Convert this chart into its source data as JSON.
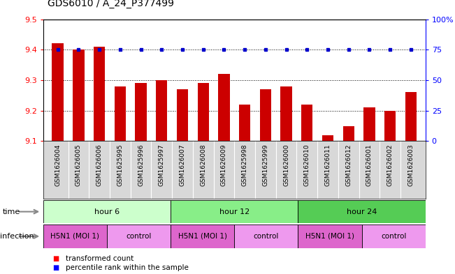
{
  "title": "GDS6010 / A_24_P377499",
  "samples": [
    "GSM1626004",
    "GSM1626005",
    "GSM1626006",
    "GSM1625995",
    "GSM1625996",
    "GSM1625997",
    "GSM1626007",
    "GSM1626008",
    "GSM1626009",
    "GSM1625998",
    "GSM1625999",
    "GSM1626000",
    "GSM1626010",
    "GSM1626011",
    "GSM1626012",
    "GSM1626001",
    "GSM1626002",
    "GSM1626003"
  ],
  "transformed_counts": [
    9.42,
    9.4,
    9.41,
    9.28,
    9.29,
    9.3,
    9.27,
    9.29,
    9.32,
    9.22,
    9.27,
    9.28,
    9.22,
    9.12,
    9.15,
    9.21,
    9.2,
    9.26
  ],
  "percentile_ranks": [
    75,
    75,
    75,
    75,
    75,
    75,
    75,
    75,
    75,
    75,
    75,
    75,
    75,
    75,
    75,
    75,
    75,
    75
  ],
  "ylim_left": [
    9.1,
    9.5
  ],
  "ylim_right": [
    0,
    100
  ],
  "bar_color": "#cc0000",
  "dot_color": "#0000cc",
  "yticks_left": [
    9.1,
    9.2,
    9.3,
    9.4,
    9.5
  ],
  "yticks_right": [
    0,
    25,
    50,
    75,
    100
  ],
  "ytick_labels_right": [
    "0",
    "25",
    "50",
    "75",
    "100%"
  ],
  "time_groups": [
    {
      "label": "hour 6",
      "start": 0,
      "end": 6,
      "color": "#ccffcc"
    },
    {
      "label": "hour 12",
      "start": 6,
      "end": 12,
      "color": "#88ee88"
    },
    {
      "label": "hour 24",
      "start": 12,
      "end": 18,
      "color": "#55cc55"
    }
  ],
  "infection_groups": [
    {
      "label": "H5N1 (MOI 1)",
      "start": 0,
      "end": 3,
      "color": "#dd66dd"
    },
    {
      "label": "control",
      "start": 3,
      "end": 6,
      "color": "#ee99ee"
    },
    {
      "label": "H5N1 (MOI 1)",
      "start": 6,
      "end": 9,
      "color": "#dd66dd"
    },
    {
      "label": "control",
      "start": 9,
      "end": 12,
      "color": "#ee99ee"
    },
    {
      "label": "H5N1 (MOI 1)",
      "start": 12,
      "end": 15,
      "color": "#dd66dd"
    },
    {
      "label": "control",
      "start": 15,
      "end": 18,
      "color": "#ee99ee"
    }
  ]
}
